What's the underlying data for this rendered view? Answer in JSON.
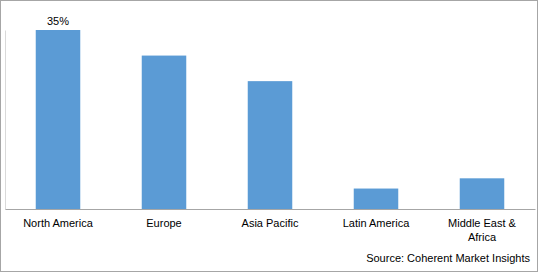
{
  "chart_data": {
    "type": "bar",
    "categories": [
      "North America",
      "Europe",
      "Asia Pacific",
      "Latin America",
      "Middle East & Africa"
    ],
    "values": [
      35,
      30,
      25,
      4,
      6
    ],
    "data_labels": true,
    "value_labels": [
      "35%",
      null,
      null,
      null,
      null
    ],
    "color": "#5b9bd5",
    "ylim": [
      0,
      35
    ],
    "yticks": [],
    "tick_labels": "x",
    "grid": false,
    "source": "Source: Coherent Market Insights"
  }
}
